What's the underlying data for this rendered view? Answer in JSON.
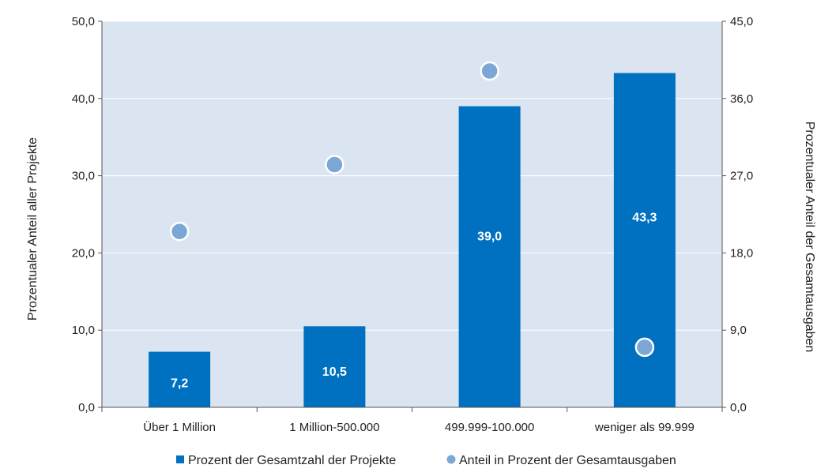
{
  "chart_data": {
    "type": "bar",
    "categories": [
      "Über 1 Million",
      "1 Million-500.000",
      "499.999-100.000",
      "weniger als 99.999"
    ],
    "series": [
      {
        "name": "Prozent der Gesamtzahl der Projekte",
        "type": "bar",
        "axis": "left",
        "values": [
          7.2,
          10.5,
          39.0,
          43.3
        ],
        "value_labels": [
          "7,2",
          "10,5",
          "39,0",
          "43,3"
        ],
        "color": "#0070c0"
      },
      {
        "name": "Anteil in Prozent der Gesamtausgaben",
        "type": "scatter",
        "axis": "right",
        "values": [
          20.5,
          28.3,
          39.2,
          7.0
        ],
        "color": "#7ba7d7"
      }
    ],
    "ylabel": "Prozentualer Anteil aller Projekte",
    "y2label": "Prozentualer Anteil der Gesamtausgaben",
    "ylim": [
      0,
      50
    ],
    "y2lim": [
      0,
      45
    ],
    "yticks": [
      "0,0",
      "10,0",
      "20,0",
      "30,0",
      "40,0",
      "50,0"
    ],
    "y2ticks": [
      "0,0",
      "9,0",
      "18,0",
      "27,0",
      "36,0",
      "45,0"
    ],
    "plot_background": "#dbe5f1",
    "legend_position": "bottom",
    "grid": true
  }
}
